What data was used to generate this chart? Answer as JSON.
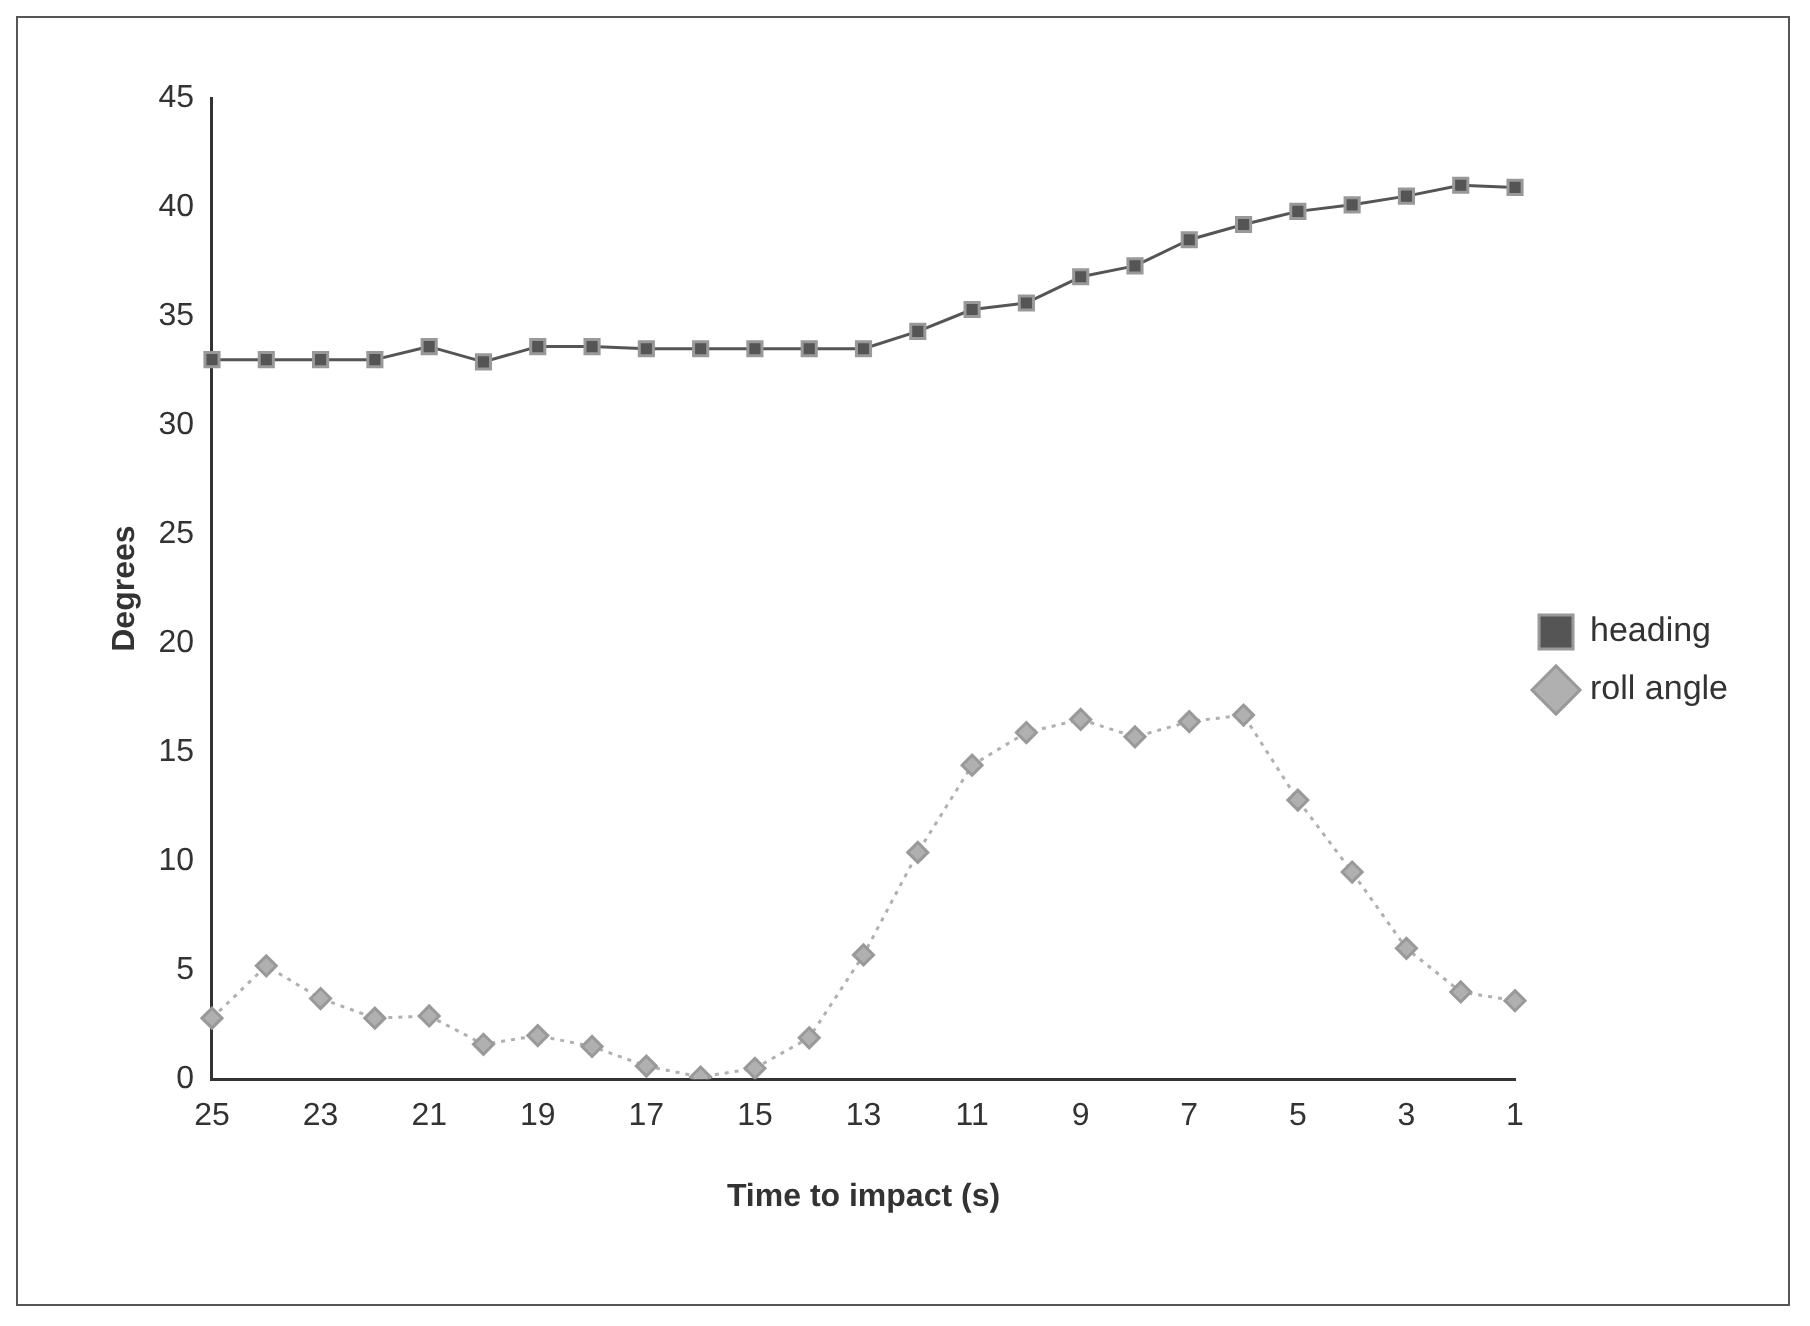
{
  "chart_data": {
    "type": "line",
    "xlabel": "Time to impact (s)",
    "ylabel": "Degrees",
    "categories": [
      "25",
      null,
      "23",
      null,
      "21",
      null,
      "19",
      null,
      "17",
      null,
      "15",
      null,
      "13",
      null,
      "11",
      null,
      "9",
      null,
      "7",
      null,
      "5",
      null,
      "3",
      null,
      "1"
    ],
    "series": [
      {
        "name": "heading",
        "color": "#555555",
        "marker": "square",
        "line_style": "solid",
        "values": [
          33,
          33,
          33,
          33,
          33.6,
          32.9,
          33.6,
          33.6,
          33.5,
          33.5,
          33.5,
          33.5,
          33.5,
          34.3,
          35.3,
          35.6,
          36.8,
          37.3,
          38.5,
          39.2,
          39.8,
          40.1,
          40.5,
          41,
          40.9
        ]
      },
      {
        "name": "roll angle",
        "color": "#b0b0b0",
        "marker": "diamond",
        "line_style": "dotted",
        "values": [
          2.8,
          5.2,
          3.7,
          2.8,
          2.9,
          1.6,
          2.0,
          1.5,
          0.6,
          0.1,
          0.5,
          1.9,
          5.7,
          10.4,
          14.4,
          15.9,
          16.5,
          15.7,
          16.4,
          16.7,
          12.8,
          9.5,
          6.0,
          4.0,
          3.6
        ]
      }
    ],
    "ylim": [
      0,
      45
    ],
    "yticks": [
      0,
      5,
      10,
      15,
      20,
      25,
      30,
      35,
      40,
      45
    ],
    "grid": false,
    "legend": "right"
  }
}
